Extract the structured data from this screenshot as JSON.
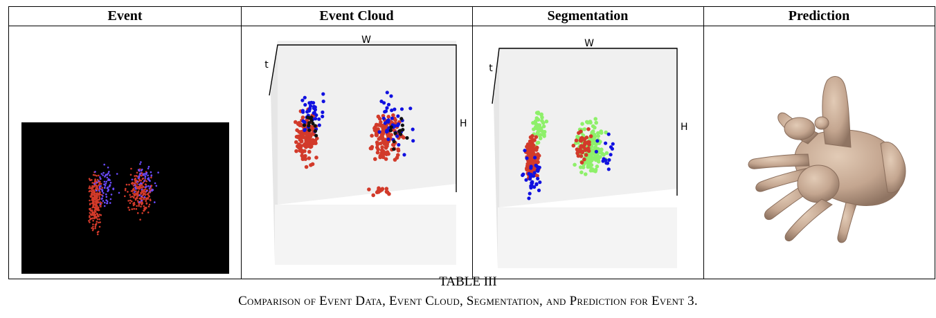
{
  "table": {
    "headers": [
      "Event",
      "Event  Cloud",
      "Segmentation",
      "Prediction"
    ]
  },
  "plots": {
    "axis_w": "W",
    "axis_t": "t",
    "axis_h": "H"
  },
  "caption": {
    "label": "TABLE III",
    "text": "Comparison of Event Data, Event Cloud, Segmentation, and Prediction for Event 3."
  },
  "colors": {
    "red_events": "#d23a2a",
    "blue_events": "#1010e0",
    "black_events": "#111111",
    "green_segment": "#8ef06a",
    "hand_skin": "#c9ad96"
  }
}
